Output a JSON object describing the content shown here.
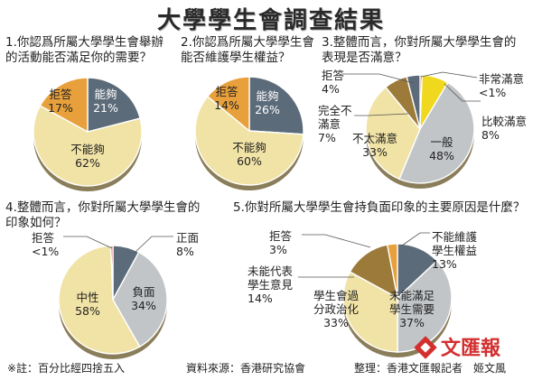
{
  "title": "大學學生會調查結果",
  "questions": [
    {
      "label_lines": [
        "1.你認爲所屬大學學生會舉辦",
        "的活動能否滿足你的需要？"
      ]
    },
    {
      "label_lines": [
        "2.你認爲所屬大學學生會",
        "能否維護學生權益？"
      ]
    },
    {
      "label_lines": [
        "3.整體而言，你對所屬大學學生會的",
        "表現是否滿意？"
      ]
    },
    {
      "label_lines": [
        "4.整體而言，你對所屬大學學生會的",
        "印象如何？"
      ]
    },
    {
      "label_lines": [
        "5.你對所屬大學學生會持負面印象的主要原因是什麼？"
      ]
    }
  ],
  "chart_data": [
    {
      "type": "pie",
      "slices": [
        {
          "label": "能夠",
          "value": 21,
          "value_text": "21%",
          "color": "#5c6b7a"
        },
        {
          "label": "不能夠",
          "value": 62,
          "value_text": "62%",
          "color": "#f1e3a6"
        },
        {
          "label": "拒答",
          "value": 17,
          "value_text": "17%",
          "color": "#e8a03c"
        }
      ]
    },
    {
      "type": "pie",
      "slices": [
        {
          "label": "能夠",
          "value": 26,
          "value_text": "26%",
          "color": "#5c6b7a"
        },
        {
          "label": "不能夠",
          "value": 60,
          "value_text": "60%",
          "color": "#f1e3a6"
        },
        {
          "label": "拒答",
          "value": 14,
          "value_text": "14%",
          "color": "#e8a03c"
        }
      ]
    },
    {
      "type": "pie",
      "slices": [
        {
          "label": "非常滿意",
          "value": 0.6,
          "value_text": "<1%",
          "color": "#c0392b"
        },
        {
          "label": "比較滿意",
          "value": 8,
          "value_text": "8%",
          "color": "#f0d81e"
        },
        {
          "label": "一般",
          "value": 48,
          "value_text": "48%",
          "color": "#c2c5c8"
        },
        {
          "label": "不太滿意",
          "value": 33,
          "value_text": "33%",
          "color": "#f1e3a6"
        },
        {
          "label": "完全不滿意",
          "value": 7,
          "value_text": "7%",
          "color": "#9c7a3a"
        },
        {
          "label": "拒答",
          "value": 4,
          "value_text": "4%",
          "color": "#5c6b7a"
        }
      ]
    },
    {
      "type": "pie",
      "slices": [
        {
          "label": "正面",
          "value": 8,
          "value_text": "8%",
          "color": "#5c6b7a"
        },
        {
          "label": "負面",
          "value": 34,
          "value_text": "34%",
          "color": "#c2c5c8"
        },
        {
          "label": "中性",
          "value": 58,
          "value_text": "58%",
          "color": "#f1e3a6"
        },
        {
          "label": "拒答",
          "value": 0.6,
          "value_text": "<1%",
          "color": "#c0392b"
        }
      ]
    },
    {
      "type": "pie",
      "slices": [
        {
          "label": "不能維護學生權益",
          "value": 13,
          "value_text": "13%",
          "color": "#5c6b7a"
        },
        {
          "label": "未能滿足學生需要",
          "value": 37,
          "value_text": "37%",
          "color": "#c2c5c8"
        },
        {
          "label": "學生會過分政治化",
          "value": 33,
          "value_text": "33%",
          "color": "#f1e3a6"
        },
        {
          "label": "未能代表學生意見",
          "value": 14,
          "value_text": "14%",
          "color": "#9c7a3a"
        },
        {
          "label": "拒答",
          "value": 3,
          "value_text": "3%",
          "color": "#e8a03c"
        }
      ]
    }
  ],
  "label_text": [
    [
      [
        "能夠",
        "21%"
      ],
      [
        "不能夠",
        "62%"
      ],
      [
        "拒答",
        "17%"
      ]
    ],
    [
      [
        "能夠",
        "26%"
      ],
      [
        "不能夠",
        "60%"
      ],
      [
        "拒答",
        "14%"
      ]
    ],
    [
      [
        "非常滿意",
        "<1%"
      ],
      [
        "比較滿意",
        "8%"
      ],
      [
        "一般",
        "48%"
      ],
      [
        "不太滿意",
        "33%"
      ],
      [
        "完全不",
        "滿意",
        "7%"
      ],
      [
        "拒答",
        "4%"
      ]
    ],
    [
      [
        "正面",
        "8%"
      ],
      [
        "負面",
        "34%"
      ],
      [
        "中性",
        "58%"
      ],
      [
        "拒答",
        "<1%"
      ]
    ],
    [
      [
        "不能維護",
        "學生權益",
        "13%"
      ],
      [
        "未能滿足",
        "學生需要",
        "37%"
      ],
      [
        "學生會過",
        "分政治化",
        "33%"
      ],
      [
        "未能代表",
        "學生意見",
        "14%"
      ],
      [
        "拒答",
        "3%"
      ]
    ]
  ],
  "footer": {
    "note": "※註：百分比經四捨五入",
    "source": "資料來源：香港研究協會",
    "credit": "整理：香港文匯報記者　姬文風"
  },
  "logo": {
    "text": "文匯報",
    "icon": "wenweipo-logo"
  }
}
